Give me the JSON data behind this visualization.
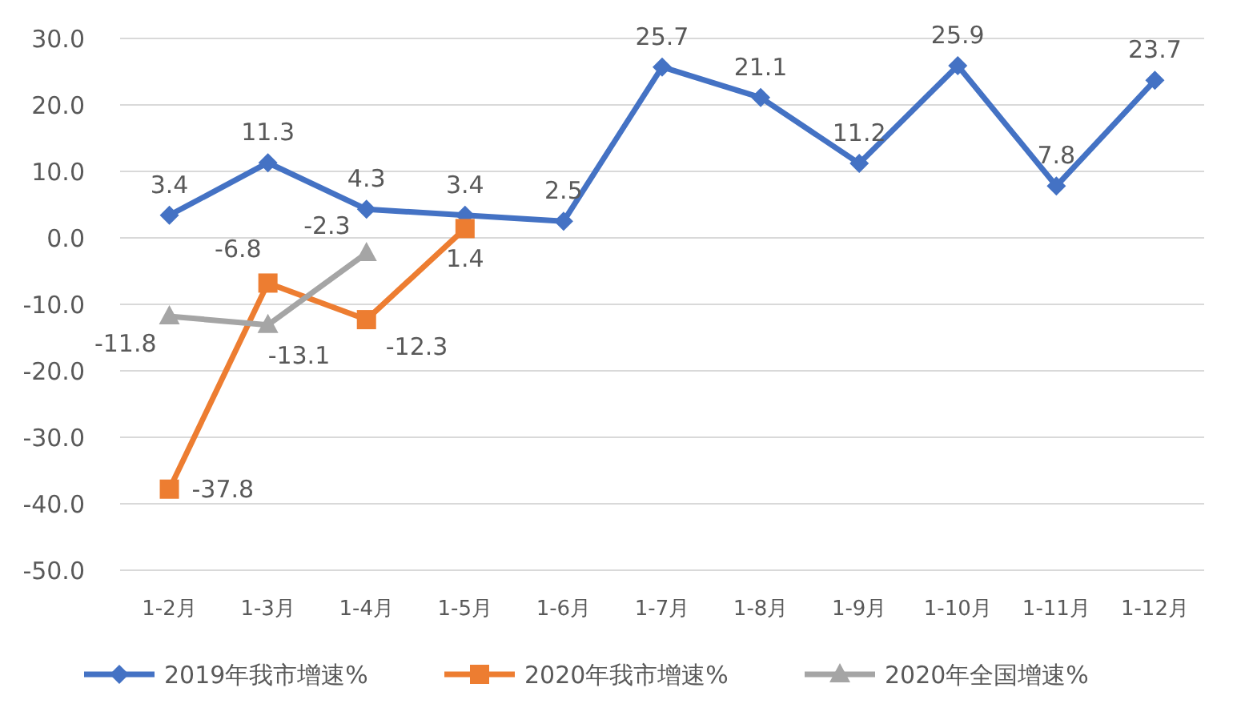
{
  "chart_data": {
    "type": "line",
    "categories": [
      "1-2月",
      "1-3月",
      "1-4月",
      "1-5月",
      "1-6月",
      "1-7月",
      "1-8月",
      "1-9月",
      "1-10月",
      "1-11月",
      "1-12月"
    ],
    "series": [
      {
        "name": "2019年我市增速%",
        "color": "#4472c4",
        "marker": "diamond",
        "values": [
          3.4,
          11.3,
          4.3,
          3.4,
          2.5,
          25.7,
          21.1,
          11.2,
          25.9,
          7.8,
          23.7
        ]
      },
      {
        "name": "2020年我市增速%",
        "color": "#ed7d31",
        "marker": "square",
        "values": [
          -37.8,
          -6.8,
          -12.3,
          1.4,
          null,
          null,
          null,
          null,
          null,
          null,
          null
        ]
      },
      {
        "name": "2020年全国增速%",
        "color": "#a5a5a5",
        "marker": "triangle",
        "values": [
          -11.8,
          -13.1,
          -2.3,
          null,
          null,
          null,
          null,
          null,
          null,
          null,
          null
        ]
      }
    ],
    "ylim": [
      -50,
      30
    ],
    "yticks": [
      {
        "value": -50,
        "label": "-50.0"
      },
      {
        "value": -40,
        "label": "-40.0"
      },
      {
        "value": -30,
        "label": "-30.0"
      },
      {
        "value": -20,
        "label": "-20.0"
      },
      {
        "value": -10,
        "label": "-10.0"
      },
      {
        "value": 0,
        "label": "0.0"
      },
      {
        "value": 10,
        "label": "10.0"
      },
      {
        "value": 20,
        "label": "20.0"
      },
      {
        "value": 30,
        "label": "30.0"
      }
    ],
    "grid": "y",
    "legend": "bottom",
    "data_labels": true,
    "line_style": "solid"
  }
}
